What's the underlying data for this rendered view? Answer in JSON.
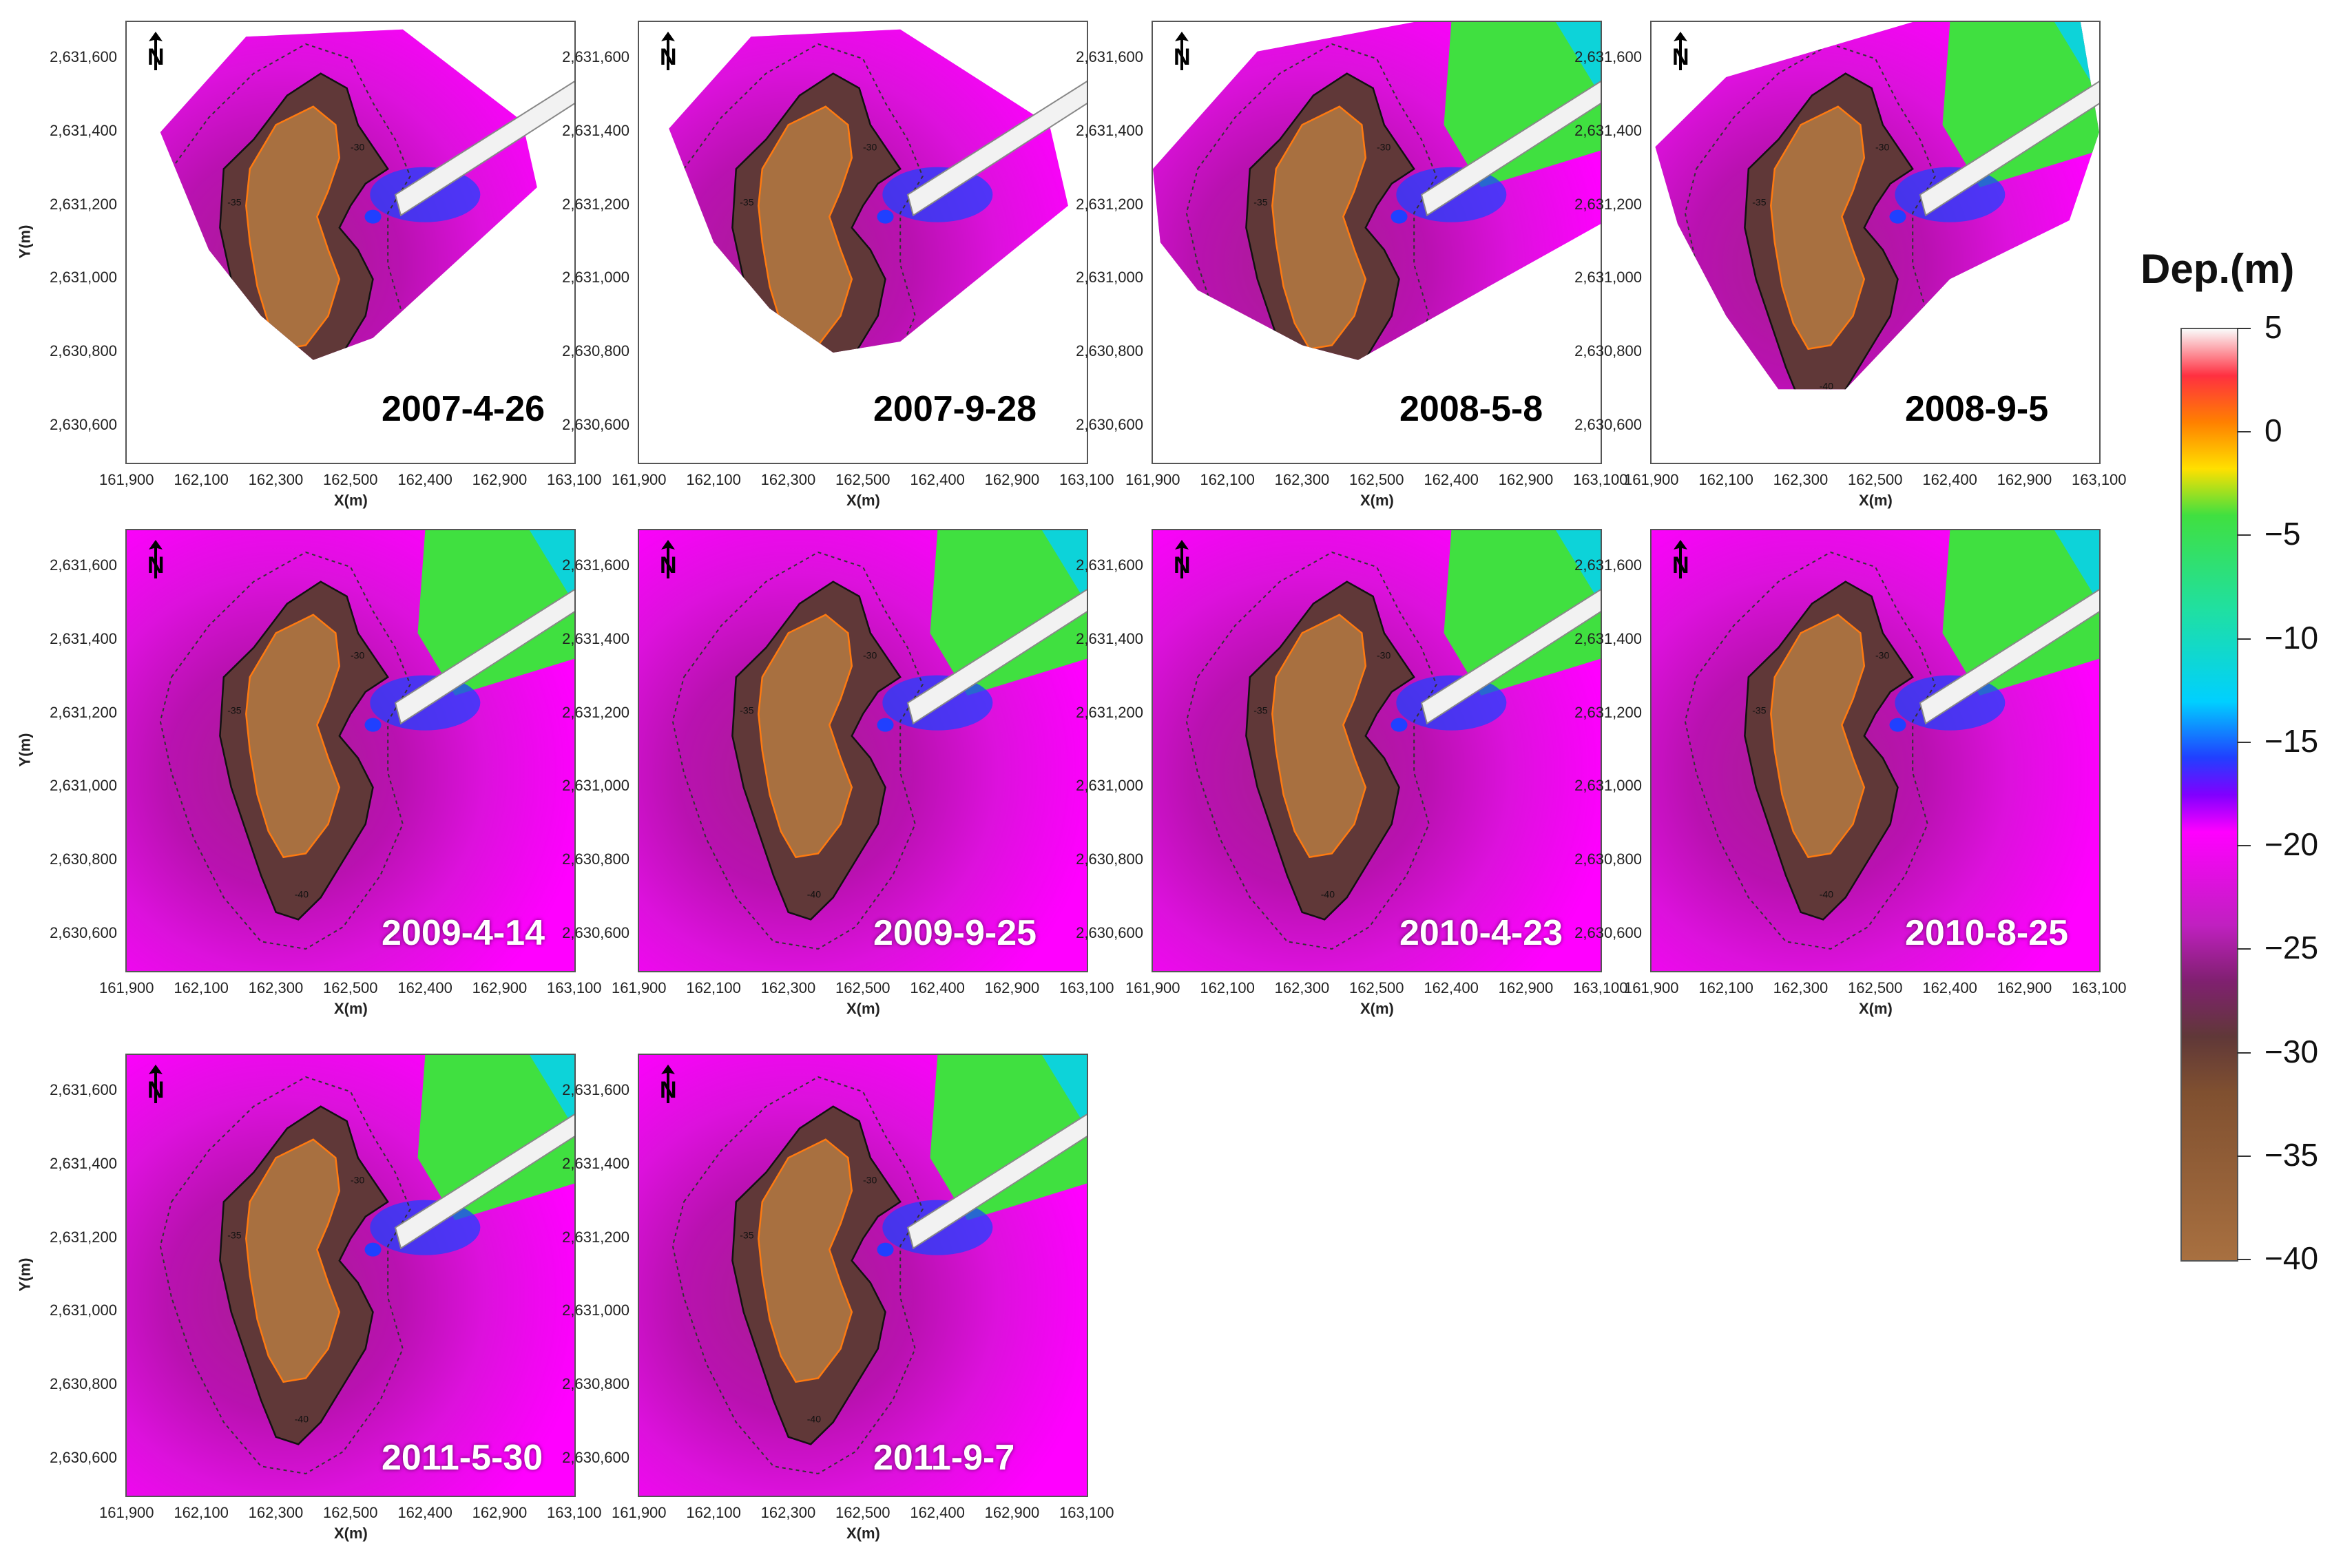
{
  "map": {
    "panels": [
      {
        "date": "2007-4-26",
        "label_color": "#000000",
        "show_y": true
      },
      {
        "date": "2007-9-28",
        "label_color": "#000000",
        "show_y": false
      },
      {
        "date": "2008-5-8",
        "label_color": "#000000",
        "show_y": false
      },
      {
        "date": "2008-9-5",
        "label_color": "#000000",
        "show_y": false
      },
      {
        "date": "2009-4-14",
        "label_color": "#ffffff",
        "show_y": true
      },
      {
        "date": "2009-9-25",
        "label_color": "#ffffff",
        "show_y": false
      },
      {
        "date": "2010-4-23",
        "label_color": "#ffffff",
        "show_y": false
      },
      {
        "date": "2010-8-25",
        "label_color": "#ffffff",
        "show_y": false
      },
      {
        "date": "2011-5-30",
        "label_color": "#ffffff",
        "show_y": true
      },
      {
        "date": "2011-9-7",
        "label_color": "#ffffff",
        "show_y": false
      }
    ],
    "x_ticks": [
      "161,900",
      "162,100",
      "162,300",
      "162,500",
      "162,400",
      "162,900",
      "163,100"
    ],
    "y_ticks": [
      "2,631,600",
      "2,631,400",
      "2,631,200",
      "2,631,000",
      "2,630,800",
      "2,630,600"
    ],
    "x_label": "X(m)",
    "y_label": "Y(m)",
    "north_label": "N",
    "contour_labels": [
      "-35",
      "-40",
      "-30"
    ]
  },
  "colorbar": {
    "title": "Dep.(m)",
    "ticks": [
      "5",
      "0",
      "−5",
      "−10",
      "−15",
      "−20",
      "−25",
      "−30",
      "−35",
      "−40"
    ],
    "colors": {
      "5": "#fafafa",
      "2.5": "#ff3040",
      "0": "#ff8000",
      "-2.5": "#ffe000",
      "-5": "#40e040",
      "-10": "#20e0a0",
      "-15": "#00d0ff",
      "-18": "#2040ff",
      "-20": "#8000ff",
      "-22": "#ff00ff",
      "-27": "#c020c0",
      "-30": "#802070",
      "-33": "#603838",
      "-36": "#805030",
      "-40": "#a87040"
    }
  }
}
